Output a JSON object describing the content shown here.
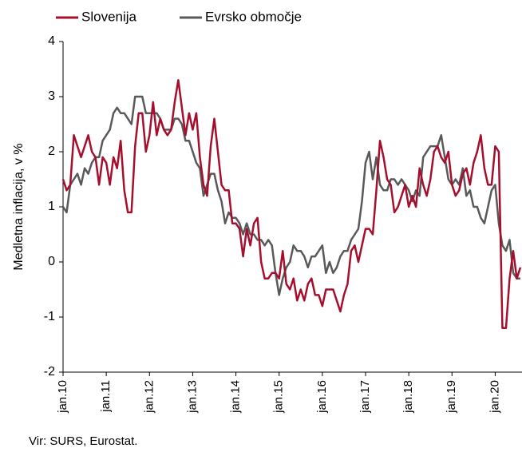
{
  "chart_data": {
    "type": "line",
    "y_label": "Medletna inflacija, v %",
    "source": "Vir: SURS, Eurostat.",
    "categories": [
      "jan.10",
      null,
      null,
      null,
      null,
      null,
      null,
      null,
      null,
      null,
      null,
      null,
      "jan.11",
      null,
      null,
      null,
      null,
      null,
      null,
      null,
      null,
      null,
      null,
      null,
      "jan.12",
      null,
      null,
      null,
      null,
      null,
      null,
      null,
      null,
      null,
      null,
      null,
      "jan.13",
      null,
      null,
      null,
      null,
      null,
      null,
      null,
      null,
      null,
      null,
      null,
      "jan.14",
      null,
      null,
      null,
      null,
      null,
      null,
      null,
      null,
      null,
      null,
      null,
      "jan.15",
      null,
      null,
      null,
      null,
      null,
      null,
      null,
      null,
      null,
      null,
      null,
      "jan.16",
      null,
      null,
      null,
      null,
      null,
      null,
      null,
      null,
      null,
      null,
      null,
      "jan.17",
      null,
      null,
      null,
      null,
      null,
      null,
      null,
      null,
      null,
      null,
      null,
      "jan.18",
      null,
      null,
      null,
      null,
      null,
      null,
      null,
      null,
      null,
      null,
      null,
      "jan.19",
      null,
      null,
      null,
      null,
      null,
      null,
      null,
      null,
      null,
      null,
      null,
      "jan.20",
      null,
      null,
      null,
      null,
      null,
      null,
      null
    ],
    "series": [
      {
        "name": "Slovenija",
        "color": "#a50f2d",
        "values": [
          1.5,
          1.3,
          1.4,
          2.3,
          2.1,
          1.9,
          2.1,
          2.3,
          2.0,
          1.9,
          1.4,
          1.9,
          1.8,
          1.4,
          1.9,
          1.7,
          2.2,
          1.3,
          0.9,
          0.9,
          2.1,
          2.7,
          2.7,
          2.0,
          2.3,
          2.9,
          2.3,
          2.6,
          2.4,
          2.3,
          2.4,
          2.9,
          3.3,
          2.8,
          2.3,
          2.7,
          2.4,
          2.7,
          1.9,
          1.4,
          1.2,
          2.1,
          2.6,
          2.0,
          1.4,
          1.3,
          1.3,
          0.7,
          0.7,
          0.6,
          0.1,
          0.6,
          0.3,
          0.7,
          0.8,
          0.0,
          -0.3,
          -0.3,
          -0.2,
          -0.2,
          -0.3,
          0.2,
          -0.4,
          -0.5,
          -0.3,
          -0.7,
          -0.5,
          -0.7,
          -0.4,
          -0.3,
          -0.6,
          -0.6,
          -0.8,
          -0.5,
          -0.5,
          -0.5,
          -0.7,
          -0.9,
          -0.6,
          -0.4,
          0.2,
          0.3,
          0.0,
          0.3,
          0.6,
          0.6,
          0.5,
          1.3,
          2.2,
          1.9,
          1.5,
          1.4,
          0.9,
          1.0,
          1.2,
          1.4,
          1.0,
          1.2,
          1.0,
          1.7,
          1.4,
          1.2,
          1.5,
          2.0,
          2.1,
          1.9,
          1.8,
          2.0,
          1.4,
          1.2,
          1.3,
          1.6,
          1.7,
          1.4,
          1.8,
          2.0,
          2.3,
          1.7,
          1.4,
          1.4,
          2.1,
          2.0,
          -1.2,
          -1.2,
          -0.3,
          0.2,
          -0.3,
          -0.1
        ]
      },
      {
        "name": "Evrsko območje",
        "color": "#595959",
        "values": [
          1.0,
          0.9,
          1.4,
          1.5,
          1.6,
          1.4,
          1.7,
          1.6,
          1.8,
          1.9,
          1.9,
          2.2,
          2.3,
          2.4,
          2.7,
          2.8,
          2.7,
          2.7,
          2.6,
          2.5,
          3.0,
          3.0,
          3.0,
          2.7,
          2.7,
          2.7,
          2.7,
          2.6,
          2.4,
          2.4,
          2.4,
          2.6,
          2.6,
          2.5,
          2.2,
          2.2,
          2.0,
          1.8,
          1.7,
          1.2,
          1.4,
          1.6,
          1.6,
          1.3,
          1.1,
          0.7,
          0.9,
          0.8,
          0.8,
          0.7,
          0.5,
          0.7,
          0.5,
          0.5,
          0.4,
          0.4,
          0.3,
          0.4,
          0.3,
          -0.2,
          -0.6,
          -0.3,
          -0.1,
          0.0,
          0.3,
          0.2,
          0.2,
          0.1,
          -0.1,
          0.1,
          0.1,
          0.2,
          0.3,
          -0.2,
          0.0,
          -0.2,
          -0.1,
          0.1,
          0.2,
          0.2,
          0.4,
          0.5,
          0.6,
          1.1,
          1.8,
          2.0,
          1.5,
          1.9,
          1.4,
          1.3,
          1.3,
          1.5,
          1.5,
          1.4,
          1.5,
          1.4,
          1.3,
          1.1,
          1.3,
          1.2,
          1.9,
          2.0,
          2.1,
          2.1,
          2.1,
          2.3,
          1.9,
          1.5,
          1.4,
          1.5,
          1.4,
          1.7,
          1.2,
          1.3,
          1.0,
          1.0,
          0.8,
          0.7,
          1.0,
          1.3,
          1.4,
          0.7,
          0.3,
          0.2,
          0.4,
          -0.2,
          -0.3,
          -0.3
        ]
      }
    ],
    "ylim": [
      -2,
      4
    ],
    "yticks": [
      -2,
      -1,
      0,
      1,
      2,
      3,
      4
    ],
    "grid": false,
    "legend": "top"
  }
}
